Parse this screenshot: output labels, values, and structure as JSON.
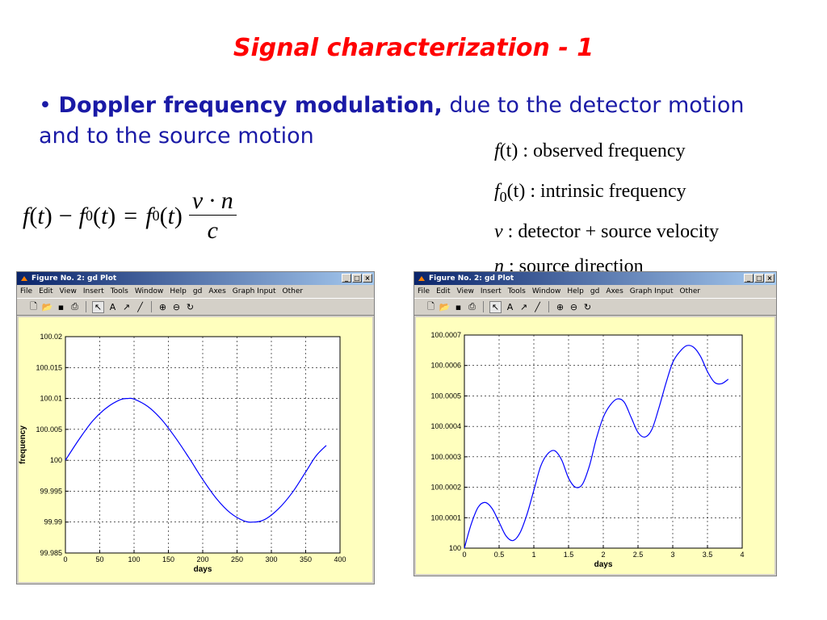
{
  "slide": {
    "title": "Signal characterization - 1",
    "bullet_marker": "•",
    "bullet_bold": "Doppler frequency modulation,",
    "bullet_rest": " due to the detector motion and to the source motion"
  },
  "equation": {
    "f": "f",
    "t": "t",
    "minus": "−",
    "f0": "f",
    "sub0": "0",
    "equals": "=",
    "v_dot_n": "v · n",
    "c": "c"
  },
  "definitions": [
    {
      "symbol": "f",
      "sub": "",
      "arg": "(t)",
      "text": " : observed frequency"
    },
    {
      "symbol": "f",
      "sub": "0",
      "arg": "(t)",
      "text": " : intrinsic frequency"
    },
    {
      "symbol": "v",
      "sub": "",
      "arg": "",
      "text": " : detector + source velocity"
    },
    {
      "symbol": "n",
      "sub": "",
      "arg": "",
      "text": " : source direction"
    }
  ],
  "window": {
    "title": "Figure No. 2: gd Plot",
    "menu": [
      "File",
      "Edit",
      "View",
      "Insert",
      "Tools",
      "Window",
      "Help",
      "gd",
      "Axes",
      "Graph Input",
      "Other"
    ],
    "toolbar": [
      "new-icon",
      "open-icon",
      "save-icon",
      "print-icon",
      "pointer-icon",
      "text-icon",
      "arrow-icon",
      "line-icon",
      "zoom-in-icon",
      "zoom-out-icon",
      "rotate-icon"
    ],
    "controls": [
      "_",
      "□",
      "×"
    ]
  },
  "chart_data": [
    {
      "type": "line",
      "xlabel": "days",
      "ylabel": "frequency",
      "xlim": [
        0,
        400
      ],
      "ylim": [
        99.985,
        100.02
      ],
      "xticks": [
        "0",
        "50",
        "100",
        "150",
        "200",
        "250",
        "300",
        "350",
        "400"
      ],
      "yticks": [
        "99.985",
        "99.99",
        "99.995",
        "100",
        "100.005",
        "100.01",
        "100.015",
        "100.02"
      ],
      "grid": true,
      "line_color": "#0000ff",
      "x": [
        0,
        20,
        40,
        60,
        80,
        91,
        100,
        120,
        140,
        160,
        180,
        200,
        220,
        240,
        260,
        274,
        290,
        310,
        330,
        350,
        365,
        380
      ],
      "y": [
        100.0,
        100.0034,
        100.0064,
        100.0085,
        100.0098,
        100.01,
        100.0099,
        100.0087,
        100.0066,
        100.0037,
        100.0004,
        99.9969,
        99.9938,
        99.9915,
        99.9902,
        99.99,
        99.9904,
        99.9921,
        99.9947,
        99.9981,
        100.0007,
        100.0024
      ]
    },
    {
      "type": "line",
      "xlabel": "days",
      "ylabel": "",
      "xlim": [
        0,
        4
      ],
      "ylim": [
        100.0,
        100.0007
      ],
      "xticks": [
        "0",
        "0.5",
        "1",
        "1.5",
        "2",
        "2.5",
        "3",
        "3.5",
        "4"
      ],
      "yticks": [
        "100",
        "100.0001",
        "100.0002",
        "100.0003",
        "100.0004",
        "100.0005",
        "100.0006",
        "100.0007"
      ],
      "grid": true,
      "line_color": "#0000ff",
      "x": [
        0,
        0.1,
        0.2,
        0.3,
        0.4,
        0.5,
        0.6,
        0.7,
        0.8,
        0.9,
        1.0,
        1.1,
        1.2,
        1.3,
        1.4,
        1.5,
        1.6,
        1.7,
        1.8,
        1.9,
        2.0,
        2.1,
        2.2,
        2.3,
        2.4,
        2.5,
        2.6,
        2.7,
        2.8,
        2.9,
        3.0,
        3.1,
        3.2,
        3.3,
        3.4,
        3.5,
        3.6,
        3.7,
        3.8
      ],
      "y": [
        100.0,
        100.00008,
        100.000135,
        100.00015,
        100.00013,
        100.000085,
        100.00004,
        100.000025,
        100.00005,
        100.00011,
        100.00019,
        100.00027,
        100.00031,
        100.00032,
        100.00029,
        100.00023,
        100.0002,
        100.00021,
        100.00027,
        100.00036,
        100.00043,
        100.00047,
        100.00049,
        100.00048,
        100.00043,
        100.00038,
        100.000365,
        100.00039,
        100.00046,
        100.00054,
        100.00061,
        100.000645,
        100.000665,
        100.00066,
        100.00063,
        100.00058,
        100.000545,
        100.00054,
        100.000555
      ]
    }
  ]
}
